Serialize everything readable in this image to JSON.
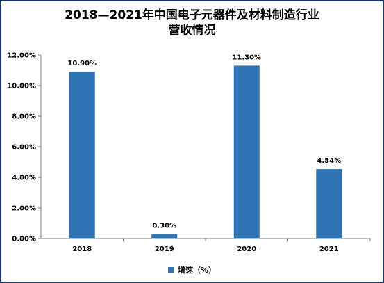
{
  "chart_data": {
    "type": "bar",
    "title_line1": "2018—2021年中国电子元器件及材料制造行业",
    "title_line2": "营收情况",
    "categories": [
      "2018",
      "2019",
      "2020",
      "2021"
    ],
    "series": [
      {
        "name": "增速（%）",
        "values": [
          10.9,
          0.3,
          11.3,
          4.54
        ],
        "labels": [
          "10.90%",
          "0.30%",
          "11.30%",
          "4.54%"
        ],
        "color": "#2e75b6"
      }
    ],
    "ylim": [
      0,
      12
    ],
    "yticks": [
      0,
      2,
      4,
      6,
      8,
      10,
      12
    ],
    "ytick_labels": [
      "0.00%",
      "2.00%",
      "4.00%",
      "6.00%",
      "8.00%",
      "10.00%",
      "12.00%"
    ],
    "grid": false,
    "legend": "bottom"
  }
}
